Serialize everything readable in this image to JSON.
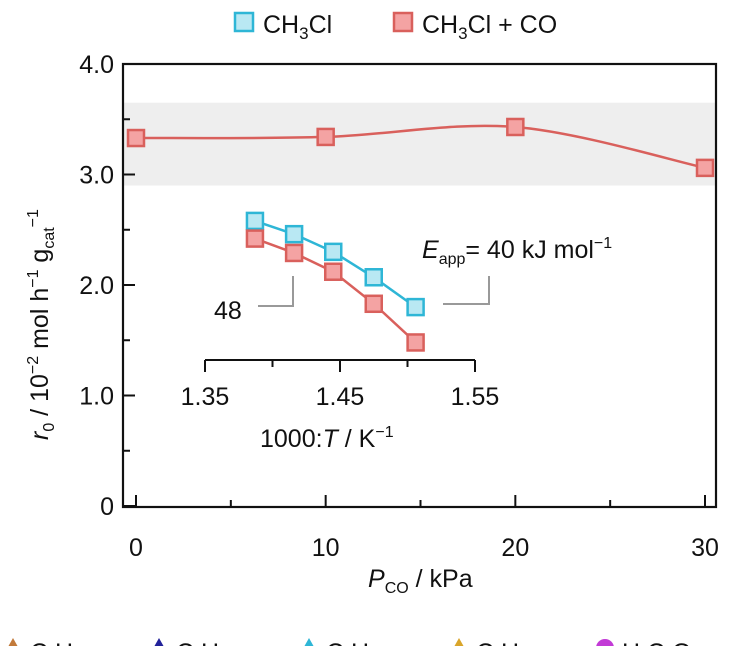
{
  "chart_data": [
    {
      "type": "line",
      "role": "main",
      "xlabel": "P_CO / kPa",
      "ylabel": "r_0 / 10^-2 mol h^-1 g_cat^-1",
      "xlim": [
        0,
        30
      ],
      "ylim": [
        0,
        4.0
      ],
      "xticks": [
        0,
        10,
        20,
        30
      ],
      "xtick_labels": [
        "0",
        "10",
        "20",
        "30"
      ],
      "yticks": [
        0,
        1.0,
        2.0,
        3.0,
        4.0
      ],
      "ytick_labels": [
        "0",
        "1.0",
        "2.0",
        "3.0",
        "4.0"
      ],
      "shaded_band": [
        2.9,
        3.65
      ],
      "series": [
        {
          "name": "CH3Cl + CO",
          "color": "#d9605c",
          "fill": "#f4a3a3",
          "x": [
            0,
            10,
            20,
            30
          ],
          "y": [
            3.33,
            3.34,
            3.43,
            3.06
          ]
        }
      ],
      "legend": [
        {
          "label_main": "CH",
          "label_sub": "3",
          "label_tail": "Cl",
          "color": "#2eb6d6",
          "fill": "#b9e8f3"
        },
        {
          "label_main": "CH",
          "label_sub": "3",
          "label_tail": "Cl + CO",
          "color": "#d9605c",
          "fill": "#f4a3a3"
        }
      ]
    },
    {
      "type": "line",
      "role": "inset",
      "xlabel": "1000:T / K^-1",
      "xlim": [
        1.35,
        1.55
      ],
      "xticks": [
        1.35,
        1.45,
        1.55
      ],
      "xtick_labels": [
        "1.35",
        "1.45",
        "1.55"
      ],
      "series": [
        {
          "name": "CH3Cl",
          "color": "#2eb6d6",
          "fill": "#b9e8f3",
          "x": [
            1.387,
            1.416,
            1.445,
            1.475,
            1.506
          ],
          "y": [
            2.58,
            2.46,
            2.3,
            2.07,
            1.8
          ]
        },
        {
          "name": "CH3Cl + CO",
          "color": "#d9605c",
          "fill": "#f4a3a3",
          "x": [
            1.387,
            1.416,
            1.445,
            1.475,
            1.506
          ],
          "y": [
            2.42,
            2.29,
            2.12,
            1.83,
            1.48
          ]
        }
      ],
      "annotations": {
        "left_value": "48",
        "eapp_symbol": "E",
        "eapp_sub": "app",
        "eapp_text": "= 40 kJ mol",
        "eapp_sup": "−1"
      }
    }
  ],
  "bottom_legend_partial": [
    {
      "symbol": "triangle",
      "color": "#c27a3a",
      "text": "C H"
    },
    {
      "symbol": "triangle",
      "color": "#22229a",
      "text": "C H"
    },
    {
      "symbol": "triangle",
      "color": "#2eb6d6",
      "text": "C H"
    },
    {
      "symbol": "triangle",
      "color": "#d9a52a",
      "text": "C H"
    },
    {
      "symbol": "circle",
      "color": "#c23ad6",
      "text": "H C O"
    }
  ]
}
